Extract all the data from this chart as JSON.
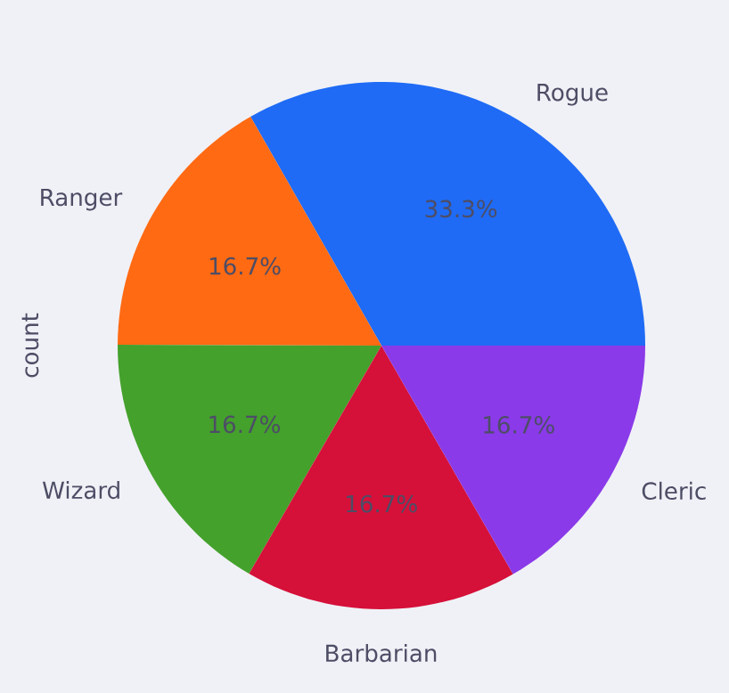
{
  "chart_data": {
    "type": "pie",
    "ylabel": "count",
    "categories": [
      "Rogue",
      "Ranger",
      "Wizard",
      "Barbarian",
      "Cleric"
    ],
    "values": [
      33.3,
      16.7,
      16.7,
      16.7,
      16.7
    ],
    "colors": [
      "#1f6bf5",
      "#ff6a13",
      "#44a12c",
      "#d51039",
      "#8a3ae8"
    ],
    "value_labels": [
      "33.3%",
      "16.7%",
      "16.7%",
      "16.7%",
      "16.7%"
    ]
  }
}
